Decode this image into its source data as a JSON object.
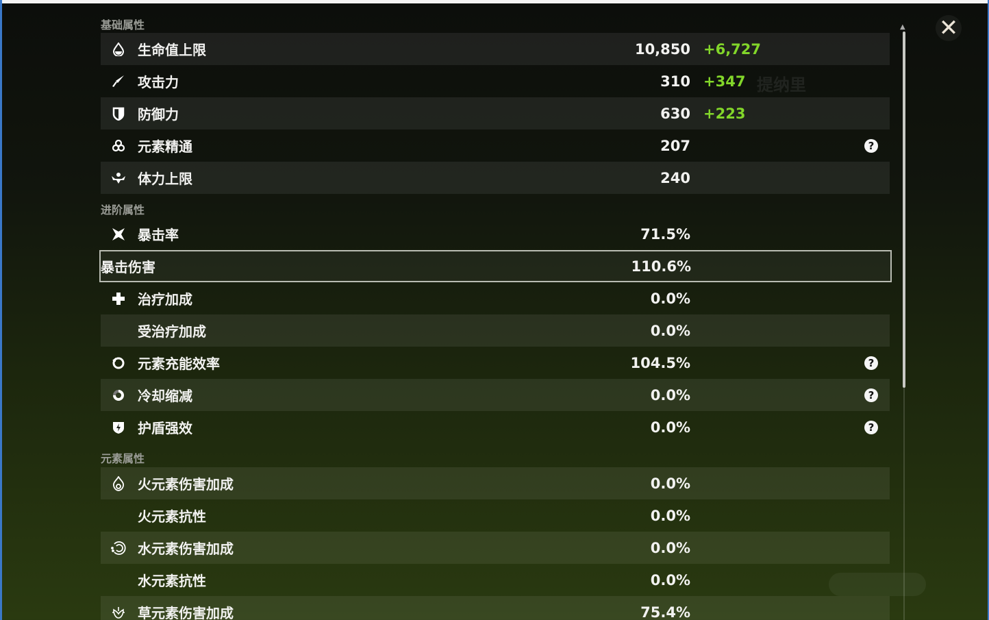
{
  "sections": {
    "base": "基础属性",
    "advanced": "进阶属性",
    "elemental": "元素属性"
  },
  "base": [
    {
      "icon": "hp-drop-icon",
      "label": "生命值上限",
      "value": "10,850",
      "bonus": "+6,727"
    },
    {
      "icon": "sword-icon",
      "label": "攻击力",
      "value": "310",
      "bonus": "+347"
    },
    {
      "icon": "shield-icon",
      "label": "防御力",
      "value": "630",
      "bonus": "+223"
    },
    {
      "icon": "elemental-mastery-icon",
      "label": "元素精通",
      "value": "207",
      "help": "?"
    },
    {
      "icon": "stamina-icon",
      "label": "体力上限",
      "value": "240"
    }
  ],
  "advanced": [
    {
      "icon": "crit-rate-icon",
      "label": "暴击率",
      "value": "71.5%"
    },
    {
      "label": "暴击伤害",
      "value": "110.6%"
    },
    {
      "icon": "healing-cross-icon",
      "label": "治疗加成",
      "value": "0.0%"
    },
    {
      "label": "受治疗加成",
      "value": "0.0%"
    },
    {
      "icon": "energy-recharge-icon",
      "label": "元素充能效率",
      "value": "104.5%",
      "help": "?"
    },
    {
      "icon": "cooldown-icon",
      "label": "冷却缩减",
      "value": "0.0%",
      "help": "?"
    },
    {
      "icon": "shield-strength-icon",
      "label": "护盾强效",
      "value": "0.0%",
      "help": "?"
    }
  ],
  "elemental": [
    {
      "icon": "pyro-icon",
      "label": "火元素伤害加成",
      "value": "0.0%"
    },
    {
      "label": "火元素抗性",
      "value": "0.0%"
    },
    {
      "icon": "hydro-icon",
      "label": "水元素伤害加成",
      "value": "0.0%"
    },
    {
      "label": "水元素抗性",
      "value": "0.0%"
    },
    {
      "icon": "dendro-icon",
      "label": "草元素伤害加成",
      "value": "75.4%"
    }
  ],
  "close_label": "✕",
  "colors": {
    "bonus": "#82d62a",
    "selected_border": "#b9bcb3"
  }
}
